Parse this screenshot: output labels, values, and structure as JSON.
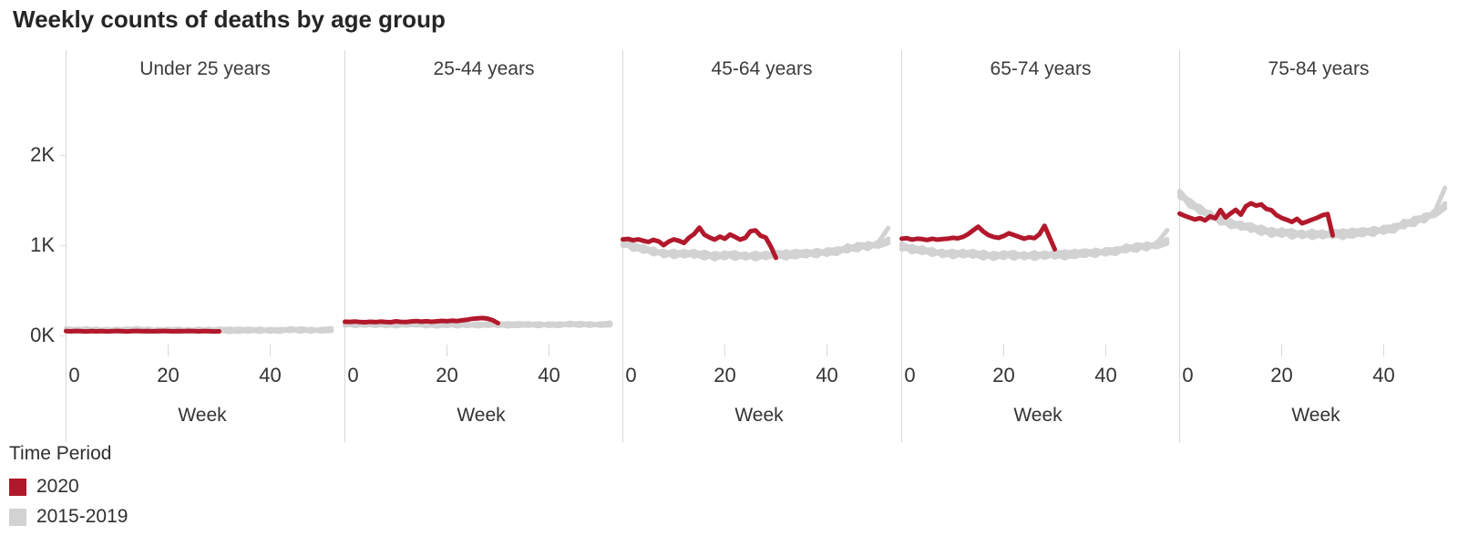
{
  "title": "Weekly counts of deaths by age group",
  "legend": {
    "title": "Time Period",
    "items": [
      {
        "label": "2020",
        "color": "#b2182b"
      },
      {
        "label": "2015-2019",
        "color": "#d2d2d2"
      }
    ]
  },
  "chart_data": {
    "type": "line",
    "title": "Weekly counts of deaths by age group",
    "subtitle": "",
    "xlabel": "Week",
    "ylabel": "",
    "x_ticks": [
      0,
      20,
      40
    ],
    "x_range": [
      0,
      52
    ],
    "y_ticks": [
      {
        "value": 0,
        "label": "0K"
      },
      {
        "value": 1000,
        "label": "1K"
      },
      {
        "value": 2000,
        "label": "2K"
      }
    ],
    "y_range": [
      0,
      2400
    ],
    "grid": false,
    "legend_position": "bottom-left",
    "series_colors": {
      "2020": "#b2182b",
      "2015-2019": "#d2d2d2"
    },
    "gray_week_step": 2,
    "gray_jitter": [
      [
        0.3,
        -0.5,
        0.8,
        -0.2,
        0.5,
        -0.8,
        0.2,
        0.9,
        -0.4,
        0.1,
        -0.7,
        0.6,
        -0.3,
        0.8,
        -0.6,
        0.2,
        -0.9,
        0.4,
        0.7,
        -0.3,
        0.5,
        -0.6,
        0.9,
        -0.2,
        0.4,
        -0.5,
        0.7
      ],
      [
        -0.6,
        0.4,
        -0.3,
        0.7,
        -0.8,
        0.3,
        0.6,
        -0.5,
        0.8,
        -0.2,
        0.5,
        -0.9,
        0.3,
        -0.4,
        0.7,
        -0.6,
        0.2,
        0.8,
        -0.5,
        0.4,
        -0.7,
        0.3,
        -0.2,
        0.6,
        -0.8,
        0.5,
        -0.3
      ],
      [
        0.8,
        0.1,
        -0.6,
        0.4,
        -0.2,
        0.7,
        -0.5,
        0.2,
        -0.8,
        0.6,
        -0.1,
        0.4,
        -0.7,
        0.3,
        0.5,
        -0.4,
        0.8,
        -0.2,
        -0.6,
        0.7,
        -0.3,
        0.5,
        0.2,
        -0.7,
        0.6,
        -0.4,
        0.1
      ],
      [
        -0.2,
        0.6,
        0.3,
        -0.7,
        0.4,
        -0.4,
        0.8,
        -0.3,
        0.2,
        -0.6,
        0.7,
        -0.2,
        0.5,
        -0.8,
        0.1,
        0.6,
        -0.4,
        -0.7,
        0.3,
        0.5,
        -0.2,
        -0.8,
        0.6,
        0.3,
        -0.5,
        0.2,
        0.9
      ],
      [
        0.5,
        -0.8,
        0.2,
        0.5,
        -0.6,
        0.1,
        -0.3,
        0.6,
        0.4,
        -0.9,
        0.2,
        0.7,
        -0.5,
        0.1,
        -0.3,
        0.8,
        0.4,
        -0.6,
        0.1,
        -0.8,
        0.6,
        0.2,
        -0.5,
        0.8,
        0.1,
        -0.7,
        -0.4
      ]
    ],
    "panels": [
      {
        "label": "Under 25 years",
        "slug": "under-25-years",
        "red_2020_weeks_0_to_30": [
          48,
          45,
          50,
          46,
          44,
          48,
          45,
          47,
          44,
          46,
          49,
          46,
          44,
          47,
          50,
          46,
          48,
          45,
          47,
          50,
          47,
          45,
          48,
          46,
          49,
          47,
          45,
          48,
          46,
          44,
          45
        ],
        "gray_2015_2019_base": [
          62,
          60,
          61,
          59,
          60,
          58,
          59,
          60,
          58,
          57,
          58,
          59,
          58,
          57,
          58,
          57,
          58,
          57,
          58,
          59,
          58,
          59,
          60,
          59,
          60,
          61,
          60
        ],
        "gray_scale": 22,
        "gray_end_spike": 0
      },
      {
        "label": "25-44 years",
        "slug": "25-44-years",
        "red_2020_weeks_0_to_30": [
          152,
          150,
          155,
          148,
          146,
          152,
          147,
          154,
          149,
          146,
          157,
          151,
          148,
          156,
          160,
          153,
          158,
          152,
          157,
          162,
          158,
          164,
          160,
          168,
          175,
          185,
          190,
          193,
          186,
          168,
          136
        ],
        "gray_2015_2019_base": [
          122,
          120,
          121,
          119,
          120,
          118,
          119,
          120,
          118,
          117,
          118,
          119,
          118,
          117,
          118,
          117,
          118,
          119,
          120,
          119,
          120,
          121,
          122,
          121,
          122,
          123,
          122
        ],
        "gray_scale": 20,
        "gray_end_spike": 0
      },
      {
        "label": "45-64 years",
        "slug": "45-64-years",
        "red_2020_weeks_0_to_30": [
          1065,
          1070,
          1055,
          1065,
          1050,
          1035,
          1060,
          1042,
          1000,
          1040,
          1065,
          1048,
          1025,
          1085,
          1125,
          1195,
          1115,
          1085,
          1062,
          1095,
          1072,
          1118,
          1092,
          1062,
          1082,
          1155,
          1165,
          1105,
          1085,
          985,
          860
        ],
        "gray_2015_2019_base": [
          1020,
          985,
          955,
          930,
          915,
          905,
          900,
          895,
          890,
          885,
          888,
          890,
          885,
          880,
          885,
          890,
          895,
          900,
          905,
          915,
          925,
          940,
          955,
          975,
          995,
          1015,
          1040
        ],
        "gray_scale": 45,
        "gray_end_spike": 110
      },
      {
        "label": "65-74 years",
        "slug": "65-74-years",
        "red_2020_weeks_0_to_30": [
          1072,
          1078,
          1062,
          1072,
          1068,
          1058,
          1072,
          1062,
          1068,
          1072,
          1082,
          1076,
          1092,
          1122,
          1165,
          1205,
          1152,
          1112,
          1092,
          1082,
          1102,
          1132,
          1112,
          1092,
          1072,
          1088,
          1078,
          1122,
          1215,
          1085,
          955
        ],
        "gray_2015_2019_base": [
          980,
          960,
          940,
          925,
          915,
          905,
          900,
          895,
          890,
          888,
          890,
          892,
          888,
          885,
          888,
          892,
          896,
          902,
          910,
          918,
          928,
          940,
          955,
          972,
          990,
          1010,
          1035
        ],
        "gray_scale": 45,
        "gray_end_spike": 90
      },
      {
        "label": "75-84 years",
        "slug": "75-84-years",
        "red_2020_weeks_0_to_30": [
          1350,
          1325,
          1305,
          1285,
          1300,
          1275,
          1320,
          1298,
          1390,
          1308,
          1352,
          1392,
          1338,
          1432,
          1465,
          1438,
          1452,
          1402,
          1388,
          1332,
          1302,
          1282,
          1258,
          1292,
          1242,
          1262,
          1285,
          1305,
          1332,
          1345,
          1108
        ],
        "gray_2015_2019_base": [
          1560,
          1470,
          1390,
          1330,
          1280,
          1240,
          1210,
          1185,
          1165,
          1150,
          1140,
          1130,
          1125,
          1120,
          1118,
          1120,
          1125,
          1132,
          1142,
          1155,
          1172,
          1195,
          1225,
          1260,
          1305,
          1360,
          1430
        ],
        "gray_scale": 50,
        "gray_end_spike": 160
      }
    ]
  }
}
